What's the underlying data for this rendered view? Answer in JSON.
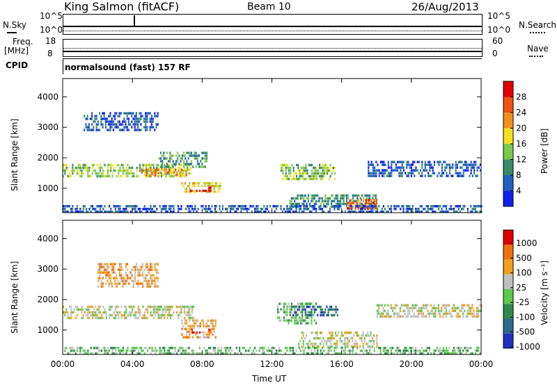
{
  "header": {
    "station": "King Salmon (fitACF)",
    "beam": "Beam 10",
    "date": "26/Aug/2013"
  },
  "top_panels": {
    "nsky_label": "N.Sky",
    "nsky_ticks": [
      "10^5",
      "10^0"
    ],
    "nsearch_label": "N.Search",
    "nsearch_ticks": [
      "10^5",
      "10^0"
    ],
    "freq_label": "Freq.",
    "freq_unit": "[MHz]",
    "freq_ticks": [
      "18",
      "8"
    ],
    "nave_label": "Nave",
    "nave_ticks": [
      "60",
      "0"
    ],
    "cpid_label": "CPID",
    "cpid_value": "normalsound (fast) 157 RF"
  },
  "chart_data": [
    {
      "type": "heatmap",
      "name": "power-panel",
      "ylabel": "Slant Range [km]",
      "xlim": [
        0,
        24
      ],
      "ylim": [
        200,
        4600
      ],
      "y_ticks": [
        "4000",
        "3000",
        "2000",
        "1000"
      ],
      "colorbar_label": "Power [dB]",
      "colorbar_ticks": [
        "28",
        "24",
        "20",
        "16",
        "12",
        "8",
        "4"
      ],
      "colors": [
        "#1020f0",
        "#2060c0",
        "#3a8a6a",
        "#7ec850",
        "#f0e020",
        "#f09020",
        "#f05010",
        "#e00000"
      ],
      "echo_bands": [
        {
          "t0": 0.0,
          "t1": 7.3,
          "r0": 1400,
          "r1": 1800,
          "level": 3
        },
        {
          "t0": 4.5,
          "t1": 7.3,
          "r0": 1450,
          "r1": 1650,
          "level": 5
        },
        {
          "t0": 6.8,
          "t1": 9.0,
          "r0": 850,
          "r1": 1200,
          "level": 4
        },
        {
          "t0": 7.3,
          "t1": 8.5,
          "r0": 950,
          "r1": 1050,
          "level": 7
        },
        {
          "t0": 1.2,
          "t1": 5.5,
          "r0": 2900,
          "r1": 3500,
          "level": 1
        },
        {
          "t0": 5.5,
          "t1": 8.3,
          "r0": 1700,
          "r1": 2200,
          "level": 2
        },
        {
          "t0": 12.5,
          "t1": 15.6,
          "r0": 1300,
          "r1": 1800,
          "level": 3
        },
        {
          "t0": 13.0,
          "t1": 18.0,
          "r0": 400,
          "r1": 800,
          "level": 2
        },
        {
          "t0": 16.3,
          "t1": 18.0,
          "r0": 300,
          "r1": 650,
          "level": 6
        },
        {
          "t0": 17.5,
          "t1": 24.0,
          "r0": 1400,
          "r1": 1900,
          "level": 1
        },
        {
          "t0": 0.0,
          "t1": 24.0,
          "r0": 200,
          "r1": 450,
          "level": 1
        }
      ]
    },
    {
      "type": "heatmap",
      "name": "velocity-panel",
      "ylabel": "Slant Range [km]",
      "xlabel": "Time UT",
      "xlim": [
        0,
        24
      ],
      "ylim": [
        200,
        4600
      ],
      "x_ticks": [
        "00:00",
        "04:00",
        "08:00",
        "12:00",
        "16:00",
        "20:00",
        "00:00"
      ],
      "y_ticks": [
        "4000",
        "3000",
        "2000",
        "1000"
      ],
      "colorbar_label": "Velocity [m s⁻¹]",
      "colorbar_ticks": [
        "1000",
        "500",
        "100",
        "25",
        "-25",
        "-100",
        "-500",
        "-1000"
      ],
      "colors": [
        "#2030c0",
        "#2e6a8a",
        "#2e8a4a",
        "#5ec850",
        "#c0c0c0",
        "#f0a020",
        "#f07010",
        "#e00000"
      ],
      "echo_bands": [
        {
          "t0": 0.0,
          "t1": 7.5,
          "r0": 1400,
          "r1": 1800,
          "level": 4
        },
        {
          "t0": 6.8,
          "t1": 8.8,
          "r0": 800,
          "r1": 1350,
          "level": 5
        },
        {
          "t0": 7.3,
          "t1": 8.5,
          "r0": 950,
          "r1": 1050,
          "level": 7
        },
        {
          "t0": 2.0,
          "t1": 5.5,
          "r0": 2400,
          "r1": 3200,
          "level": 5
        },
        {
          "t0": 12.3,
          "t1": 14.5,
          "r0": 1200,
          "r1": 1900,
          "level": 3
        },
        {
          "t0": 13.0,
          "t1": 15.8,
          "r0": 1500,
          "r1": 1800,
          "level": 1
        },
        {
          "t0": 13.5,
          "t1": 18.0,
          "r0": 450,
          "r1": 950,
          "level": 4
        },
        {
          "t0": 18.0,
          "t1": 24.0,
          "r0": 1450,
          "r1": 1850,
          "level": 4
        },
        {
          "t0": 0.0,
          "t1": 24.0,
          "r0": 200,
          "r1": 450,
          "level": 3
        }
      ]
    }
  ],
  "colors": {
    "axis": "#000000",
    "background": "#ffffff"
  }
}
